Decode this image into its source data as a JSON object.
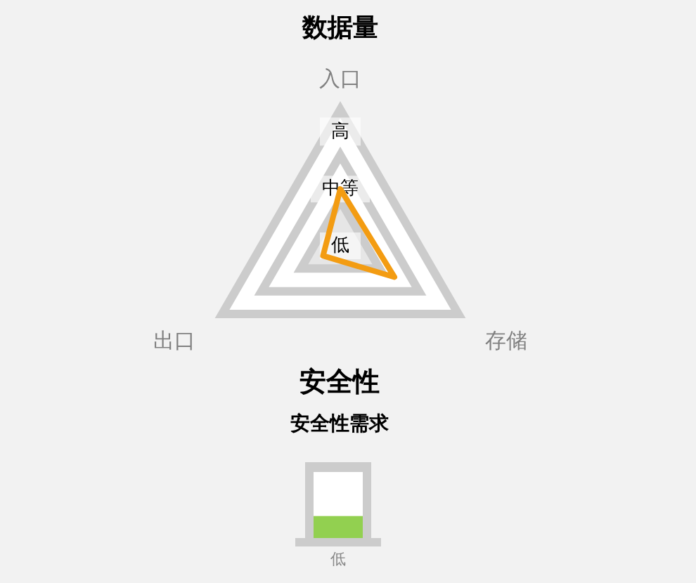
{
  "chart_data": [
    {
      "type": "radar",
      "title": "数据量",
      "categories": [
        "入口",
        "存储",
        "出口"
      ],
      "series": [
        {
          "color": "#f39c12",
          "values": [
            1,
            1.1,
            0.35
          ]
        }
      ],
      "ylim": [
        0,
        2.4
      ],
      "yticks": [
        {
          "value": 0,
          "label": "低"
        },
        {
          "value": 1,
          "label": "中等"
        },
        {
          "value": 2,
          "label": "高"
        }
      ],
      "marker": "none",
      "line_style": "solid"
    },
    {
      "type": "other",
      "title": "安全性",
      "subtitle": "安全性需求",
      "annotations": [
        "低"
      ]
    }
  ]
}
